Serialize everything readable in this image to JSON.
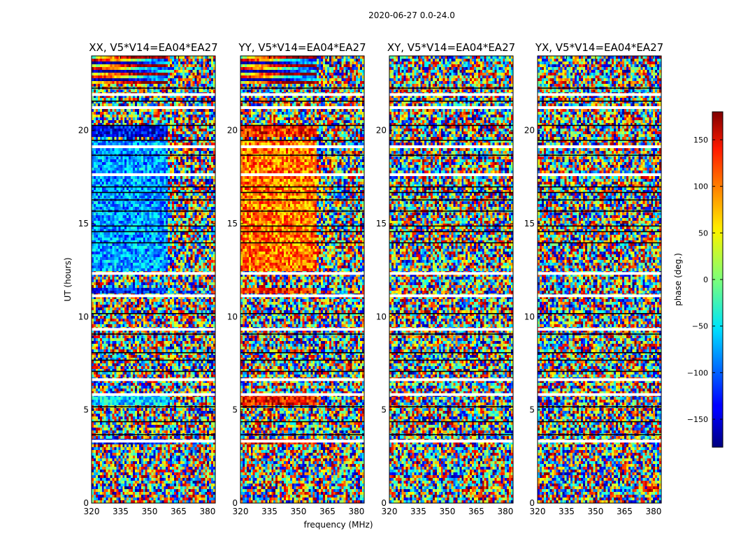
{
  "chart_data": {
    "type": "heatmap",
    "suptitle": "2020-06-27 0.0-24.0",
    "xlabel": "frequency (MHz)",
    "ylabel": "UT (hours)",
    "xlim": [
      320,
      384
    ],
    "ylim": [
      0,
      24
    ],
    "xticks": [
      "320",
      "335",
      "350",
      "365",
      "380"
    ],
    "yticks": [
      "0",
      "5",
      "10",
      "15",
      "20"
    ],
    "grid": false,
    "colormap": "jet",
    "colorbar": {
      "label": "phase (deg.)",
      "range": [
        -180,
        180
      ],
      "ticks": [
        "−150",
        "−100",
        "−50",
        "0",
        "50",
        "100",
        "150"
      ],
      "location": "right"
    },
    "panels": [
      {
        "title": "XX, V5*V14=EA04*EA27",
        "pattern": "XX"
      },
      {
        "title": "YY, V5*V14=EA04*EA27",
        "pattern": "YY"
      },
      {
        "title": "XY, V5*V14=EA04*EA27",
        "pattern": "XY"
      },
      {
        "title": "YX, V5*V14=EA04*EA27",
        "pattern": "YX"
      }
    ],
    "flagged_white_ut": [
      3.4,
      5.9,
      6.7,
      9.4,
      11.2,
      12.4,
      17.7,
      19.2,
      21.3,
      22.0
    ],
    "dark_gap_ut": [
      3.7,
      4.4,
      5.2,
      7.1,
      7.7,
      8.1,
      9.1,
      10.2,
      14.0,
      14.6,
      14.9,
      15.7,
      16.3,
      16.7,
      17.0,
      18.7,
      19.5,
      20.3,
      21.6,
      22.3
    ]
  }
}
